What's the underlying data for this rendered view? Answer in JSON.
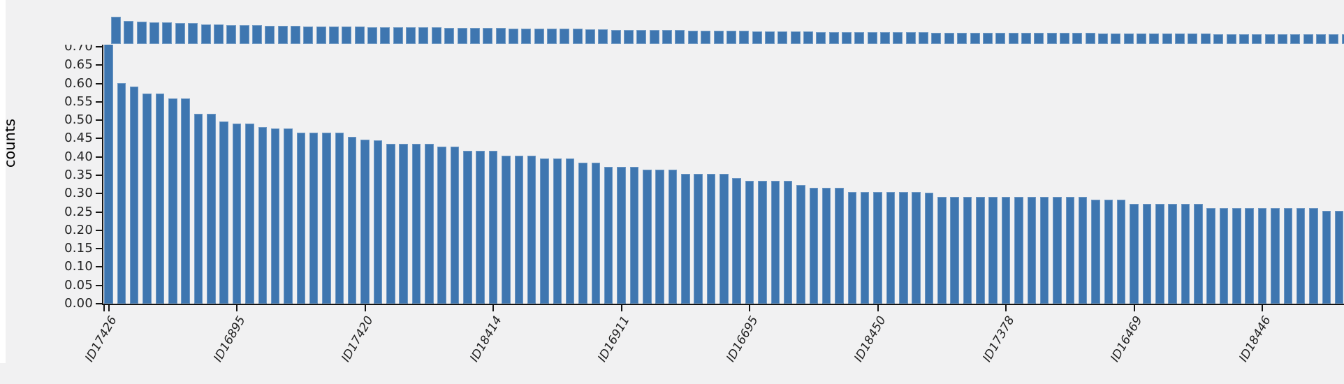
{
  "figure": {
    "ylabel": "counts",
    "background_color": "#f1f1f2",
    "bar_color": "#3e76b0",
    "axis_color": "#141414",
    "tick_text_color": "#222222",
    "ytick_labels": [
      "0.00",
      "0.05",
      "0.10",
      "0.15",
      "0.20",
      "0.25",
      "0.30",
      "0.35",
      "0.40",
      "0.45",
      "0.50",
      "0.55",
      "0.60",
      "0.65",
      "0.70"
    ]
  },
  "chart_data": {
    "type": "bar",
    "title": "",
    "xlabel": "",
    "ylabel": "counts",
    "ylim": [
      0,
      0.705
    ],
    "grid": false,
    "legend": false,
    "n_bars": 97,
    "xtick_positions": [
      0,
      10,
      20,
      30,
      40,
      50,
      60,
      70,
      80,
      90
    ],
    "xtick_labels": [
      "ID17426",
      "ID16895",
      "ID17420",
      "ID18414",
      "ID16911",
      "ID16695",
      "ID18450",
      "ID17378",
      "ID16469",
      "ID18446"
    ],
    "values": [
      0.71,
      0.601,
      0.591,
      0.572,
      0.572,
      0.56,
      0.56,
      0.518,
      0.518,
      0.497,
      0.49,
      0.49,
      0.481,
      0.477,
      0.477,
      0.466,
      0.466,
      0.466,
      0.466,
      0.455,
      0.447,
      0.446,
      0.435,
      0.435,
      0.435,
      0.435,
      0.428,
      0.428,
      0.417,
      0.417,
      0.417,
      0.404,
      0.404,
      0.404,
      0.396,
      0.396,
      0.396,
      0.385,
      0.385,
      0.373,
      0.373,
      0.373,
      0.365,
      0.365,
      0.365,
      0.353,
      0.353,
      0.353,
      0.353,
      0.343,
      0.334,
      0.334,
      0.334,
      0.334,
      0.323,
      0.315,
      0.315,
      0.315,
      0.304,
      0.304,
      0.304,
      0.304,
      0.304,
      0.304,
      0.302,
      0.291,
      0.291,
      0.291,
      0.291,
      0.291,
      0.291,
      0.291,
      0.291,
      0.291,
      0.291,
      0.291,
      0.291,
      0.283,
      0.283,
      0.283,
      0.273,
      0.273,
      0.273,
      0.273,
      0.273,
      0.273,
      0.26,
      0.26,
      0.26,
      0.26,
      0.26,
      0.26,
      0.26,
      0.26,
      0.26,
      0.253,
      0.253
    ]
  }
}
